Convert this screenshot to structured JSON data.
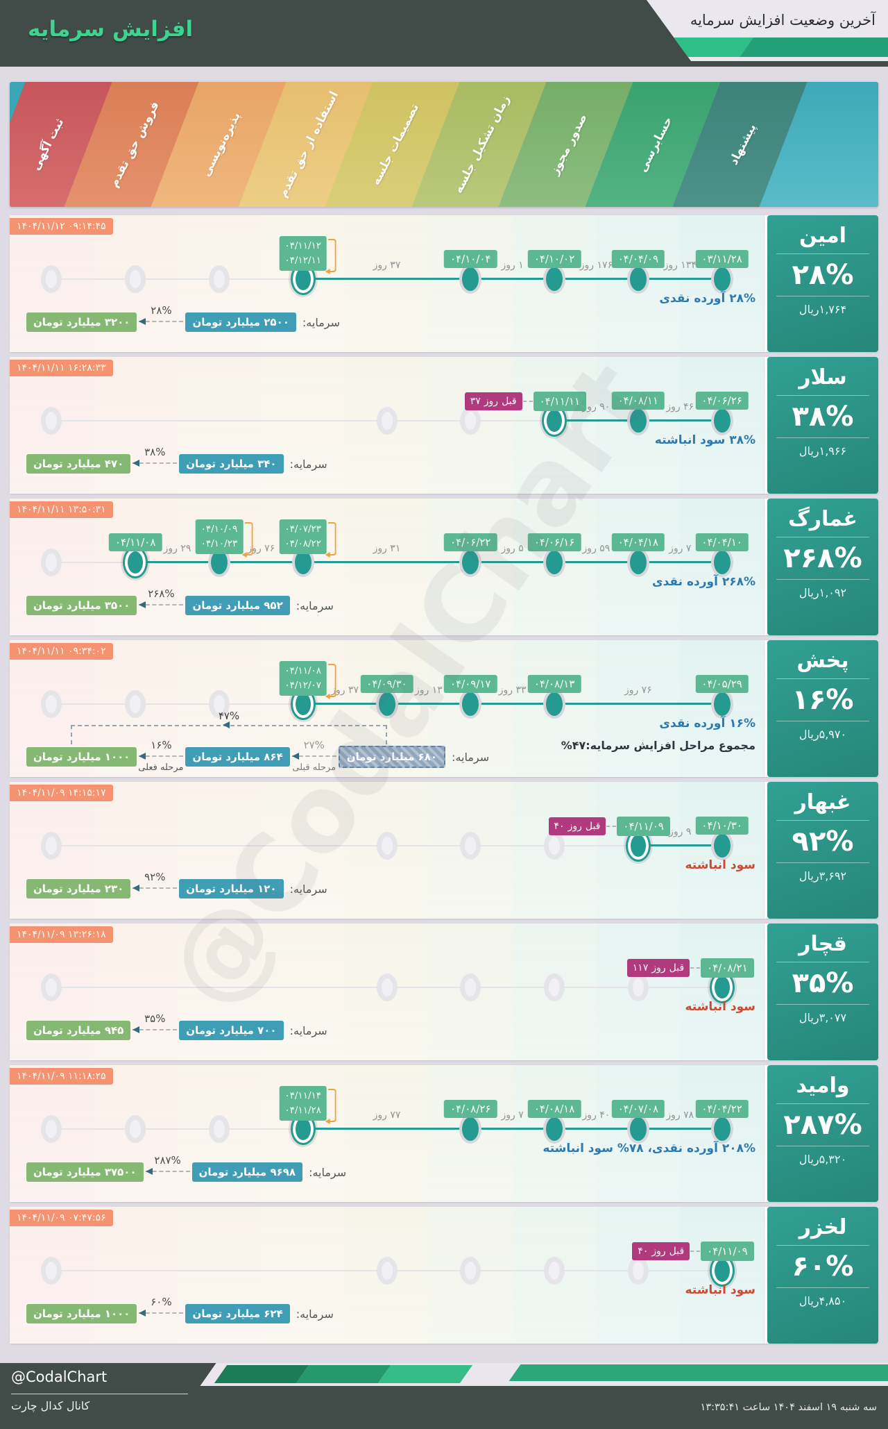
{
  "header": {
    "title_left": "افزایش سرمایه",
    "title_right": "آخرین وضعیت افزایش سرمایه"
  },
  "watermark": "@CodalChart",
  "stages": [
    {
      "label": "ثبت آگهی",
      "color_top": "#c4525a",
      "color_bottom": "#d9716f"
    },
    {
      "label": "فروش حق تقدم",
      "color_top": "#d97b52",
      "color_bottom": "#e69570"
    },
    {
      "label": "پذیره‌نویسی",
      "color_top": "#e8a263",
      "color_bottom": "#f0b981"
    },
    {
      "label": "استفاده از حق تقدم",
      "color_top": "#e5bc6b",
      "color_bottom": "#eed089"
    },
    {
      "label": "تصمیمات جلسه",
      "color_top": "#cdc05e",
      "color_bottom": "#dbd07c"
    },
    {
      "label": "زمان تشکیل جلسه",
      "color_top": "#a6b95f",
      "color_bottom": "#bcca7e"
    },
    {
      "label": "صدور مجوز",
      "color_top": "#72ab64",
      "color_bottom": "#8fc084"
    },
    {
      "label": "حسابرسی",
      "color_top": "#35a06c",
      "color_bottom": "#57b586"
    },
    {
      "label": "پیشنهاد",
      "color_top": "#3b8077",
      "color_bottom": "#4f948c"
    }
  ],
  "stage_end": {
    "color_top": "#3ba6b6",
    "color_bottom": "#5cbfca"
  },
  "rows": [
    {
      "company": "امین",
      "percent": "۲۸%",
      "price": "۱,۷۶۴",
      "price_unit": "ریال",
      "timestamp": "۱۴۰۴/۱۱/۱۲ ۰۹:۱۴:۴۵",
      "gray_dots": [
        1,
        2,
        3
      ],
      "current": {
        "col": 4,
        "dates": [
          "۰۴/۱۱/۱۲",
          "۰۴/۱۲/۱۱"
        ],
        "bracket": true
      },
      "done": [
        {
          "col": 6,
          "dates": [
            "۰۴/۱۰/۰۴"
          ]
        },
        {
          "col": 7,
          "dates": [
            "۰۴/۱۰/۰۲"
          ]
        },
        {
          "col": 8,
          "dates": [
            "۰۴/۰۴/۰۹"
          ]
        },
        {
          "col": 9,
          "dates": [
            "۰۳/۱۱/۲۸"
          ]
        }
      ],
      "day_labels": [
        {
          "text": "۳۷ روز",
          "from": 4,
          "to": 6
        },
        {
          "text": "۱ روز",
          "from": 6,
          "to": 7
        },
        {
          "text": "۱۷۶ روز",
          "from": 7,
          "to": 8
        },
        {
          "text": "۱۳۴ روز",
          "from": 8,
          "to": 9
        }
      ],
      "note": {
        "text": "۲۸% آورده نقدی",
        "color": "blue"
      },
      "capital": {
        "label": "سرمایه:",
        "from": "۲۵۰۰ میلیارد تومان",
        "pct": "۲۸%",
        "to": "۳۲۰۰ میلیارد تومان"
      }
    },
    {
      "company": "سلار",
      "percent": "۳۸%",
      "price": "۱,۹۶۶",
      "price_unit": "ریال",
      "timestamp": "۱۴۰۴/۱۱/۱۱ ۱۶:۲۸:۳۳",
      "gray_dots": [
        1,
        5,
        6
      ],
      "current": {
        "col": 7,
        "dates": [
          "۰۴/۱۱/۱۱"
        ],
        "ago": "۳۷ روز قبل"
      },
      "done": [
        {
          "col": 8,
          "dates": [
            "۰۴/۰۸/۱۱"
          ]
        },
        {
          "col": 9,
          "dates": [
            "۰۴/۰۶/۲۶"
          ]
        }
      ],
      "day_labels": [
        {
          "text": "۹۰ روز",
          "from": 7,
          "to": 8
        },
        {
          "text": "۴۶ روز",
          "from": 8,
          "to": 9
        }
      ],
      "note": {
        "text": "۳۸% سود انباشته",
        "color": "blue"
      },
      "capital": {
        "label": "سرمایه:",
        "from": "۳۴۰ میلیارد تومان",
        "pct": "۳۸%",
        "to": "۴۷۰ میلیارد تومان"
      }
    },
    {
      "company": "غمارگ",
      "percent": "۲۶۸%",
      "price": "۱,۰۹۲",
      "price_unit": "ریال",
      "timestamp": "۱۴۰۴/۱۱/۱۱ ۱۳:۵۰:۳۱",
      "gray_dots": [
        1
      ],
      "current": {
        "col": 2,
        "dates": [
          "۰۴/۱۱/۰۸"
        ]
      },
      "done": [
        {
          "col": 3,
          "dates": [
            "۰۴/۱۰/۰۹",
            "۰۴/۱۰/۲۳"
          ],
          "bracket": true
        },
        {
          "col": 4,
          "dates": [
            "۰۴/۰۷/۲۳",
            "۰۴/۰۸/۲۲"
          ],
          "bracket": true
        },
        {
          "col": 6,
          "dates": [
            "۰۴/۰۶/۲۲"
          ]
        },
        {
          "col": 7,
          "dates": [
            "۰۴/۰۶/۱۶"
          ]
        },
        {
          "col": 8,
          "dates": [
            "۰۴/۰۴/۱۸"
          ]
        },
        {
          "col": 9,
          "dates": [
            "۰۴/۰۴/۱۰"
          ]
        }
      ],
      "day_labels": [
        {
          "text": "۲۹ روز",
          "from": 2,
          "to": 3
        },
        {
          "text": "۷۶ روز",
          "from": 3,
          "to": 4
        },
        {
          "text": "۳۱ روز",
          "from": 4,
          "to": 6
        },
        {
          "text": "۵ روز",
          "from": 6,
          "to": 7
        },
        {
          "text": "۵۹ روز",
          "from": 7,
          "to": 8
        },
        {
          "text": "۷ روز",
          "from": 8,
          "to": 9
        }
      ],
      "note": {
        "text": "۲۶۸% آورده نقدی",
        "color": "blue"
      },
      "capital": {
        "label": "سرمایه:",
        "from": "۹۵۲ میلیارد تومان",
        "pct": "۲۶۸%",
        "to": "۳۵۰۰ میلیارد تومان"
      }
    },
    {
      "company": "پخش",
      "percent": "۱۶%",
      "price": "۵,۹۷۰",
      "price_unit": "ریال",
      "timestamp": "۱۴۰۴/۱۱/۱۱ ۰۹:۳۴:۰۲",
      "gray_dots": [
        1,
        2,
        3
      ],
      "current": {
        "col": 4,
        "dates": [
          "۰۴/۱۱/۰۸",
          "۰۴/۱۲/۰۷"
        ],
        "bracket": true
      },
      "done": [
        {
          "col": 5,
          "dates": [
            "۰۴/۰۹/۳۰"
          ]
        },
        {
          "col": 6,
          "dates": [
            "۰۴/۰۹/۱۷"
          ]
        },
        {
          "col": 7,
          "dates": [
            "۰۴/۰۸/۱۳"
          ]
        },
        {
          "col": 9,
          "dates": [
            "۰۴/۰۵/۲۹"
          ]
        }
      ],
      "day_labels": [
        {
          "text": "۳۷ روز",
          "from": 4,
          "to": 5
        },
        {
          "text": "۱۳ روز",
          "from": 5,
          "to": 6
        },
        {
          "text": "۳۳ روز",
          "from": 6,
          "to": 7
        },
        {
          "text": "۷۶ روز",
          "from": 7,
          "to": 9
        }
      ],
      "note": {
        "text": "۱۶% آورده نقدی",
        "color": "blue"
      },
      "note2": "مجموع مراحل افزایش سرمایه:۴۷%",
      "capital_multi": {
        "label": "سرمایه:",
        "prev": "۶۸۰ میلیارد تومان",
        "pct1": "۲۷%",
        "stage1_label": "مرحله قبلی",
        "mid": "۸۶۴ میلیارد تومان",
        "pct2": "۱۶%",
        "stage2_label": "مرحله فعلی",
        "to": "۱۰۰۰ میلیارد تومان",
        "total_pct": "۴۷%"
      }
    },
    {
      "company": "غبهار",
      "percent": "۹۲%",
      "price": "۳,۶۹۲",
      "price_unit": "ریال",
      "timestamp": "۱۴۰۴/۱۱/۰۹ ۱۴:۱۵:۱۷",
      "gray_dots": [
        1,
        5,
        6,
        7
      ],
      "current": {
        "col": 8,
        "dates": [
          "۰۴/۱۱/۰۹"
        ],
        "ago": "۴۰ روز قبل"
      },
      "done": [
        {
          "col": 9,
          "dates": [
            "۰۴/۱۰/۳۰"
          ]
        }
      ],
      "day_labels": [
        {
          "text": "۹ روز",
          "from": 8,
          "to": 9
        }
      ],
      "note": {
        "text": "سود انباشته",
        "color": "red"
      },
      "capital": {
        "label": "سرمایه:",
        "from": "۱۲۰ میلیارد تومان",
        "pct": "۹۲%",
        "to": "۲۳۰ میلیارد تومان"
      }
    },
    {
      "company": "قچار",
      "percent": "۳۵%",
      "price": "۳,۰۷۷",
      "price_unit": "ریال",
      "timestamp": "۱۴۰۴/۱۱/۰۹ ۱۳:۲۶:۱۸",
      "gray_dots": [
        1,
        5,
        6,
        7,
        8
      ],
      "current": {
        "col": 9,
        "dates": [
          "۰۴/۰۸/۲۱"
        ],
        "ago": "۱۱۷ روز قبل"
      },
      "done": [],
      "day_labels": [],
      "note": {
        "text": "سود انباشته",
        "color": "red"
      },
      "capital": {
        "label": "سرمایه:",
        "from": "۷۰۰ میلیارد تومان",
        "pct": "۳۵%",
        "to": "۹۴۵ میلیارد تومان"
      }
    },
    {
      "company": "وامید",
      "percent": "۲۸۷%",
      "price": "۵,۳۲۰",
      "price_unit": "ریال",
      "timestamp": "۱۴۰۴/۱۱/۰۹ ۱۱:۱۸:۲۵",
      "gray_dots": [
        1,
        2,
        3
      ],
      "current": {
        "col": 4,
        "dates": [
          "۰۴/۱۱/۱۴",
          "۰۴/۱۱/۲۸"
        ],
        "bracket": true
      },
      "done": [
        {
          "col": 6,
          "dates": [
            "۰۴/۰۸/۲۶"
          ]
        },
        {
          "col": 7,
          "dates": [
            "۰۴/۰۸/۱۸"
          ]
        },
        {
          "col": 8,
          "dates": [
            "۰۴/۰۷/۰۸"
          ]
        },
        {
          "col": 9,
          "dates": [
            "۰۴/۰۴/۲۲"
          ]
        }
      ],
      "day_labels": [
        {
          "text": "۷۷ روز",
          "from": 4,
          "to": 6
        },
        {
          "text": "۷ روز",
          "from": 6,
          "to": 7
        },
        {
          "text": "۴۰ روز",
          "from": 7,
          "to": 8
        },
        {
          "text": "۷۸ روز",
          "from": 8,
          "to": 9
        }
      ],
      "note": {
        "text": "۲۰۸% آورده نقدی، ۷۸% سود انباشته",
        "color": "blue"
      },
      "capital": {
        "label": "سرمایه:",
        "from": "۹۶۹۸ میلیارد تومان",
        "pct": "۲۸۷%",
        "to": "۳۷۵۰۰ میلیارد تومان"
      }
    },
    {
      "company": "لخزر",
      "percent": "۶۰%",
      "price": "۴,۸۵۰",
      "price_unit": "ریال",
      "timestamp": "۱۴۰۴/۱۱/۰۹ ۰۷:۴۷:۵۶",
      "gray_dots": [
        1,
        5,
        6,
        7,
        8
      ],
      "current": {
        "col": 9,
        "dates": [
          "۰۴/۱۱/۰۹"
        ],
        "ago": "۴۰ روز قبل"
      },
      "done": [],
      "day_labels": [],
      "note": {
        "text": "سود انباشته",
        "color": "red"
      },
      "capital": {
        "label": "سرمایه:",
        "from": "۶۲۴ میلیارد تومان",
        "pct": "۶۰%",
        "to": "۱۰۰۰ میلیارد تومان"
      }
    }
  ],
  "footer": {
    "handle": "@CodalChart",
    "channel": "کانال کدال چارت",
    "datetime": "سه شنبه ۱۹ اسفند ۱۴۰۴ ساعت ۱۳:۳۵:۴۱"
  },
  "colors": {
    "page_bg": "#dfdbe5",
    "panel_dark": "#414b47",
    "accent_green": "#2fbe87",
    "title_green": "#3fd392",
    "timestamp_badge": "#f5926f",
    "date_badge": "#5cb893",
    "ago_badge": "#b13a7f",
    "bracket_orange": "#f2a23c",
    "dot_teal": "#259a90",
    "note_blue": "#2e79ad",
    "note_red": "#cb4a31",
    "capital_from_badge": "#3f9eb5",
    "capital_to_badge": "#85b872",
    "capital_prev_badge": "#91a7bf",
    "card_gradient": [
      "#31a093",
      "#268679"
    ],
    "column_tints": [
      "#fbeeec",
      "#fbf1eb",
      "#faf3ec",
      "#f9f5ec",
      "#f6f5ea",
      "#f2f5ec",
      "#ecf5ef",
      "#e7f4f1",
      "#e2f3f1"
    ]
  }
}
